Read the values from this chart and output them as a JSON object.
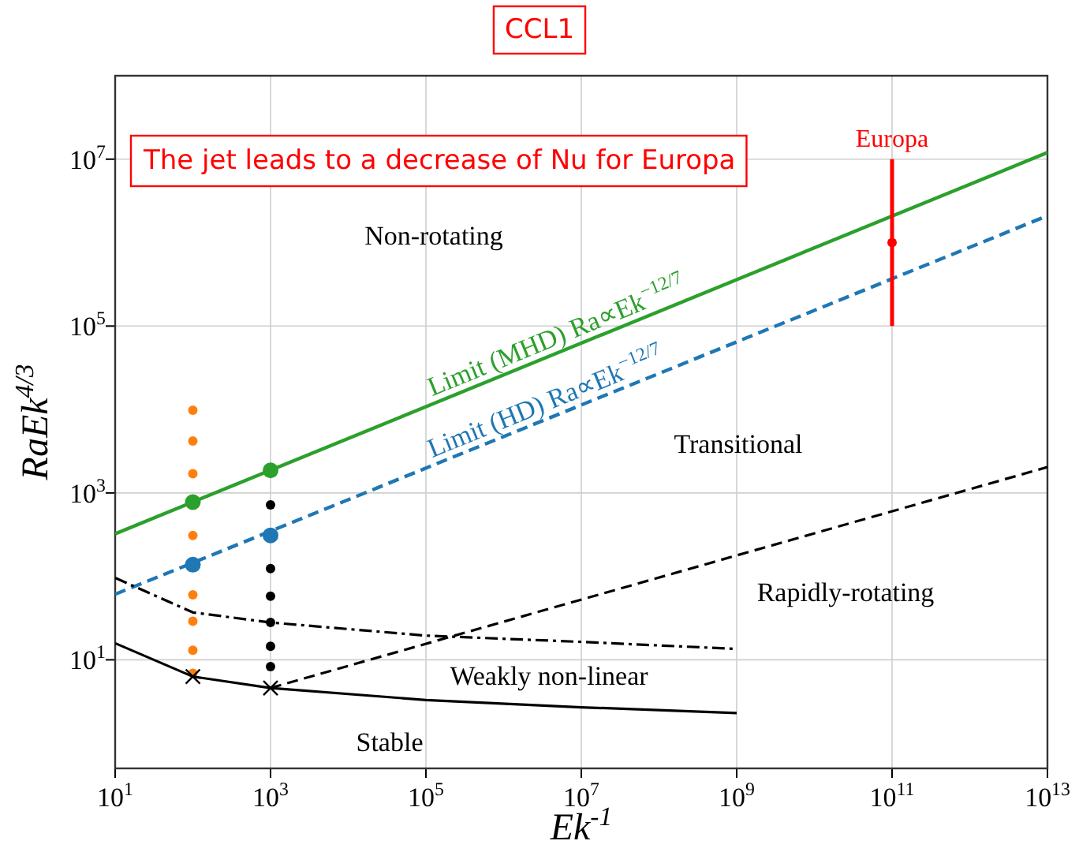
{
  "chart_data": {
    "type": "line",
    "title": "CCL1",
    "xlabel": "Ek$^{-1}$",
    "ylabel": "RaEk$^{4/3}$",
    "log": "xy",
    "grid": true,
    "xlim": [
      10,
      10000000000000
    ],
    "ylim": [
      0.5,
      100000000
    ],
    "xticks": [
      {
        "value": 10,
        "label": "10$^{1}$"
      },
      {
        "value": 1000,
        "label": "10$^{3}$"
      },
      {
        "value": 100000,
        "label": "10$^{5}$"
      },
      {
        "value": 10000000,
        "label": "10$^{7}$"
      },
      {
        "value": 1000000000,
        "label": "10$^{9}$"
      },
      {
        "value": 100000000000,
        "label": "10$^{11}$"
      },
      {
        "value": 10000000000000,
        "label": "10$^{13}$"
      }
    ],
    "yticks": [
      {
        "value": 10,
        "label": "10$^{1}$"
      },
      {
        "value": 1000,
        "label": "10$^{3}$"
      },
      {
        "value": 100000,
        "label": "10$^{5}$"
      },
      {
        "value": 10000000,
        "label": "10$^{7}$"
      }
    ],
    "annotations": [
      "The jet leads to a decrease of Nu for Europa",
      "Non-rotating",
      "Transitional",
      "Rapidly-rotating",
      "Weakly non-linear",
      "Stable"
    ],
    "series": [
      {
        "name": "Limit (MHD)   Ra∝Ek$^{−12/7}$",
        "color": "#2ca02c",
        "line_style": "solid",
        "x": [
          10,
          10000000000000
        ],
        "values": [
          324,
          12000000
        ]
      },
      {
        "name": "Limit (HD)   Ra∝Ek$^{−12/7}$",
        "color": "#1f77b4",
        "line_style": "dashed",
        "x": [
          10,
          10000000000000
        ],
        "values": [
          61,
          2100000
        ]
      },
      {
        "type": "scatter",
        "color": "#2ca02c",
        "marker": "circle",
        "x": [
          100,
          1000
        ],
        "values": [
          776,
          1862
        ]
      },
      {
        "type": "scatter",
        "color": "#1f77b4",
        "marker": "circle",
        "x": [
          100,
          1000
        ],
        "values": [
          138,
          310
        ]
      },
      {
        "type": "scatter",
        "color": "#ff7f0e",
        "marker": "circle",
        "x": [
          100,
          100,
          100,
          100,
          100,
          100,
          100,
          100
        ],
        "values": [
          9800,
          4200,
          1700,
          310,
          60,
          29,
          13,
          6.9
        ]
      },
      {
        "type": "scatter",
        "color": "#000000",
        "marker": "circle",
        "x": [
          1000,
          1000,
          1000,
          1000,
          1000,
          1000
        ],
        "values": [
          720,
          124,
          58,
          28,
          14.5,
          8.3
        ]
      },
      {
        "color": "#000000",
        "line_style": "solid",
        "x": [
          10,
          100,
          1000,
          100000,
          10000000,
          1000000000
        ],
        "values": [
          15.8,
          6.3,
          4.6,
          3.3,
          2.7,
          2.3
        ]
      },
      {
        "color": "#000000",
        "line_style": "dashdot",
        "x": [
          10,
          100,
          1000,
          100000,
          10000000,
          1000000000
        ],
        "values": [
          96,
          37,
          28,
          19.5,
          16.4,
          13.5
        ]
      },
      {
        "color": "#000000",
        "line_style": "dashed",
        "x": [
          1000,
          10000000000000
        ],
        "values": [
          4.6,
          2040
        ]
      },
      {
        "type": "scatter",
        "color": "#000000",
        "marker": "cross",
        "x": [
          100,
          1000
        ],
        "values": [
          6.3,
          4.6
        ]
      },
      {
        "name": "Europa",
        "type": "scatter",
        "color": "#ff0000",
        "marker": "circle",
        "x": [
          100000000000
        ],
        "values": [
          1000000
        ],
        "errors": [
          [
            100000,
            10000000
          ]
        ]
      }
    ]
  }
}
